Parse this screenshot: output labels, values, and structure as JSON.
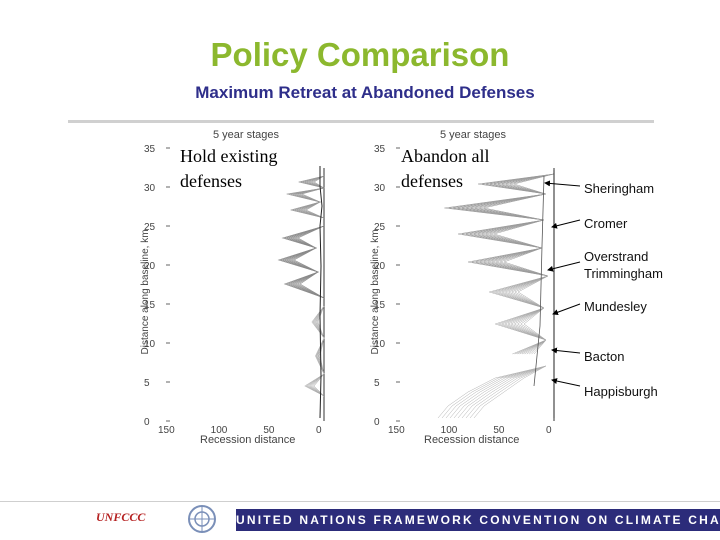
{
  "slide": {
    "title": "Policy Comparison",
    "subtitle": "Maximum Retreat at Abandoned Defenses"
  },
  "panels": [
    {
      "label_line1": "Hold existing",
      "label_line2": "defenses",
      "stage_label": "5 year stages",
      "xlabel": "Recession distance",
      "ylabel": "Distance along baseline, km"
    },
    {
      "label_line1": "Abandon all",
      "label_line2": "defenses",
      "stage_label": "5 year stages",
      "xlabel": "Recession distance",
      "ylabel": "Distance along baseline, km"
    }
  ],
  "axes": {
    "y_ticks": [
      "0",
      "5",
      "10",
      "15",
      "20",
      "25",
      "30",
      "35"
    ],
    "x_ticks": [
      "150",
      "100",
      "50",
      "0"
    ]
  },
  "places": [
    {
      "line1": "Sheringham",
      "line2": ""
    },
    {
      "line1": "Cromer",
      "line2": ""
    },
    {
      "line1": "Overstrand",
      "line2": "Trimmingham"
    },
    {
      "line1": "Mundesley",
      "line2": ""
    },
    {
      "line1": "Bacton",
      "line2": ""
    },
    {
      "line1": "Happisburgh",
      "line2": ""
    }
  ],
  "footer": {
    "org_logo": "UNFCCC",
    "band_text": "UNITED NATIONS FRAMEWORK CONVENTION ON CLIMATE CHANGE"
  },
  "colors": {
    "title": "#8cb82e",
    "subtitle": "#2e2e8a",
    "footer_band": "#2c2c7a",
    "logo": "#b52020"
  },
  "icons": {
    "un_emblem": "un-emblem-icon"
  }
}
